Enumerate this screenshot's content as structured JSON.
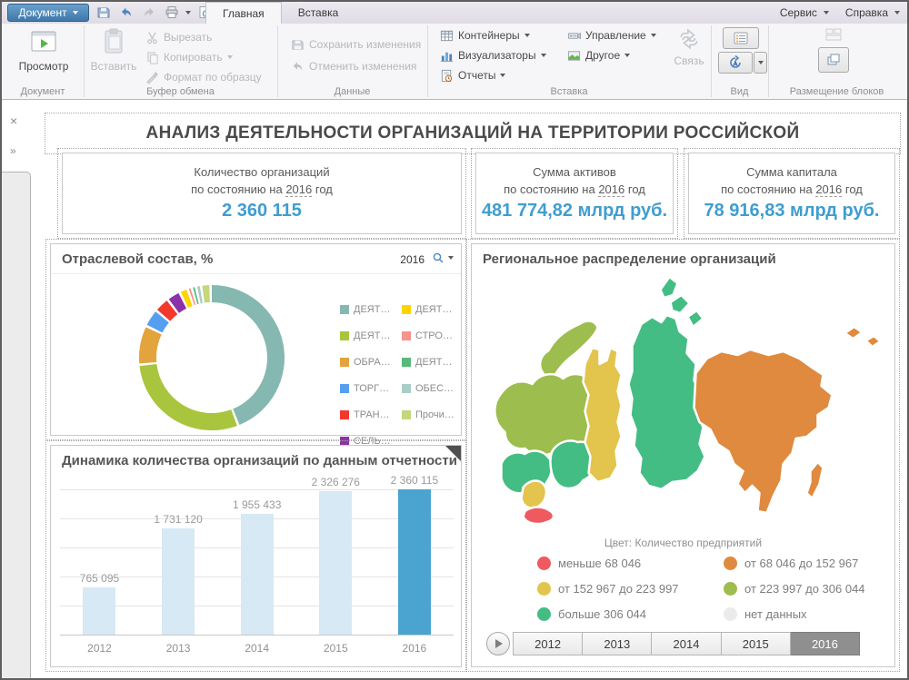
{
  "titlebar": {
    "app_menu": "Документ",
    "tabs": [
      {
        "label": "Главная",
        "active": true
      },
      {
        "label": "Вставка",
        "active": false
      }
    ],
    "menus": {
      "service": "Сервис",
      "help": "Справка"
    }
  },
  "ribbon": {
    "document": {
      "group_label": "Документ",
      "preview": "Просмотр"
    },
    "clipboard": {
      "group_label": "Буфер обмена",
      "paste": "Вставить",
      "cut": "Вырезать",
      "copy": "Копировать",
      "format_painter": "Формат по образцу"
    },
    "data": {
      "group_label": "Данные",
      "save_changes": "Сохранить изменения",
      "undo_changes": "Отменить изменения"
    },
    "insert": {
      "group_label": "Вставка",
      "containers": "Контейнеры",
      "visualizers": "Визуализаторы",
      "reports": "Отчеты",
      "management": "Управление",
      "other": "Другое",
      "link": "Связь"
    },
    "view": {
      "group_label": "Вид"
    },
    "layout": {
      "group_label": "Размещение блоков"
    }
  },
  "left_rail": {
    "close_glyph": "×",
    "collapse_glyph": "»"
  },
  "dashboard": {
    "title": "АНАЛИЗ ДЕЯТЕЛЬНОСТИ ОРГАНИЗАЦИЙ НА ТЕРРИТОРИИ РОССИЙСКОЙ",
    "kpis": [
      {
        "line1": "Количество организаций",
        "prefix": "по состоянию на",
        "year": "2016",
        "suffix": "год",
        "value": "2 360 115"
      },
      {
        "line1": "Сумма активов",
        "prefix": "по состоянию на",
        "year": "2016",
        "suffix": "год",
        "value": "481 774,82 млрд руб."
      },
      {
        "line1": "Сумма капитала",
        "prefix": "по состоянию на",
        "year": "2016",
        "suffix": "год",
        "value": "78 916,83 млрд руб."
      }
    ],
    "industry": {
      "title": "Отраслевой состав, %",
      "year": "2016"
    },
    "dynamics": {
      "title": "Динамика количества организаций по данным отчетности"
    },
    "map": {
      "title": "Региональное распределение организаций",
      "color_note": "Цвет: Количество предприятий",
      "years": [
        "2012",
        "2013",
        "2014",
        "2015",
        "2016"
      ],
      "selected_year": "2016"
    }
  },
  "chart_data": [
    {
      "type": "pie",
      "subtype": "donut",
      "title": "Отраслевой состав, %",
      "year": "2016",
      "legend_position": "right",
      "segments": [
        {
          "label": "ДЕЯТ…",
          "color": "#85b8b0",
          "value": 45.5
        },
        {
          "label": "ДЕЯТ…",
          "color": "#a9c53d",
          "value": 30.0
        },
        {
          "label": "ОБРА…",
          "color": "#e3a33d",
          "value": 8.5
        },
        {
          "label": "ТОРГ…",
          "color": "#569ff0",
          "value": 3.6
        },
        {
          "label": "ТРАН…",
          "color": "#f2392c",
          "value": 3.0
        },
        {
          "label": "СЕЛЬ…",
          "color": "#8c32a8",
          "value": 2.6
        },
        {
          "label": "ДЕЯТ…",
          "color": "#ffd400",
          "value": 1.4
        },
        {
          "label": "СТРО…",
          "color": "#f9918c",
          "value": 0.4
        },
        {
          "label": "ДЕЯТ…",
          "color": "#57b97a",
          "value": 0.4
        },
        {
          "label": "ОБЕС…",
          "color": "#a9cdc7",
          "value": 0.6
        },
        {
          "label": "Прочи…",
          "color": "#c3d77b",
          "value": 1.6
        }
      ]
    },
    {
      "type": "bar",
      "title": "Динамика количества организаций по данным отчетности",
      "categories": [
        "2012",
        "2013",
        "2014",
        "2015",
        "2016"
      ],
      "values": [
        765095,
        1731120,
        1955433,
        2326276,
        2360115
      ],
      "labels": [
        "765 095",
        "1 731 120",
        "1 955 433",
        "2 326 276",
        "2 360 115"
      ],
      "bar_color": "#d6e9f4",
      "highlight_color": "#4ba3cf",
      "highlight_index": 4,
      "ylim": [
        0,
        2360115
      ],
      "grid": true
    },
    {
      "type": "heatmap",
      "subtype": "choropleth-map",
      "title": "Региональное распределение организаций",
      "measure": "Количество предприятий",
      "classes": [
        {
          "color": "#ee5a5f",
          "label": "меньше 68 046"
        },
        {
          "color": "#df8a3e",
          "label": "от 68 046 до 152 967"
        },
        {
          "color": "#e3c44c",
          "label": "от 152 967 до 223 997"
        },
        {
          "color": "#9dbd4e",
          "label": "от 223 997 до 306 044"
        },
        {
          "color": "#44bd84",
          "label": "больше 306 044"
        },
        {
          "color": "#ebebeb",
          "label": "нет данных"
        }
      ],
      "regions": [
        {
          "id": "islands",
          "class": 4
        },
        {
          "id": "kola",
          "class": 3
        },
        {
          "id": "northwest",
          "class": 3
        },
        {
          "id": "central",
          "class": 4
        },
        {
          "id": "volga",
          "class": 4
        },
        {
          "id": "south",
          "class": 2
        },
        {
          "id": "caucasus",
          "class": 0
        },
        {
          "id": "urals",
          "class": 2
        },
        {
          "id": "siberia",
          "class": 4
        },
        {
          "id": "fareast",
          "class": 1
        },
        {
          "id": "sakhalin",
          "class": 1
        },
        {
          "id": "chukotka1",
          "class": 1
        },
        {
          "id": "chukotka2",
          "class": 1
        }
      ],
      "year_selected": "2016"
    }
  ]
}
